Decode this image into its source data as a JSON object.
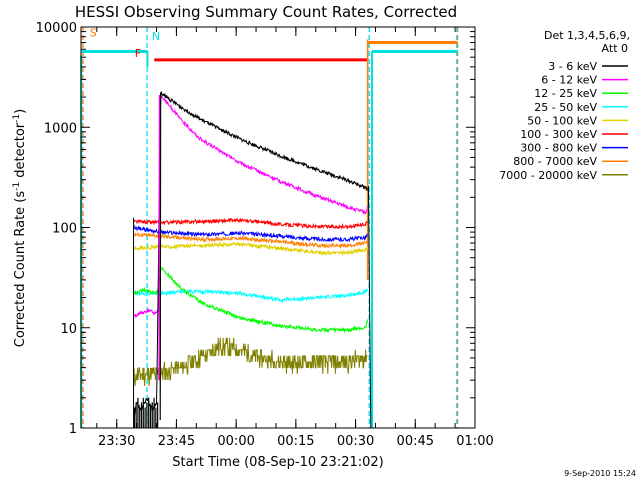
{
  "chart_data": {
    "type": "line",
    "title": "HESSI Observing Summary Count Rates, Corrected",
    "xlabel": "Start Time (08-Sep-10 23:21:02)",
    "ylabel": "Corrected Count Rate (s",
    "ylabel_sup": "-1",
    "ylabel_mid": " detector",
    "ylabel_end": ")",
    "y_scale": "log",
    "ylim": [
      1,
      10000
    ],
    "xlim": [
      "23:21:02",
      "01:00"
    ],
    "y_ticks": [
      {
        "value": 1,
        "label": "1"
      },
      {
        "value": 10,
        "label": "10"
      },
      {
        "value": 100,
        "label": "100"
      },
      {
        "value": 1000,
        "label": "1000"
      },
      {
        "value": 10000,
        "label": "10000"
      }
    ],
    "x_ticks": [
      "23:30",
      "23:45",
      "00:00",
      "00:15",
      "00:30",
      "00:45",
      "01:00"
    ],
    "x_tick_minutes": [
      8.97,
      23.97,
      38.97,
      53.97,
      68.97,
      83.97,
      98.97
    ],
    "xlim_minutes": [
      0,
      98.97
    ],
    "timestamp": "9-Sep-2010 15:24",
    "legend": {
      "header": "Det 1,3,4,5,6,9,",
      "sub": "Att 0",
      "placement": "top-right"
    },
    "flags": [
      {
        "label": "S",
        "color": "#ff8000"
      },
      {
        "label": "N",
        "color": "#00e0e0"
      },
      {
        "label": "F",
        "color": "#ff0000"
      }
    ],
    "series": [
      {
        "name": "3 - 6 keV",
        "color": "#000000",
        "x": [
          13.2,
          14.0,
          15.0,
          16.5,
          18.0,
          19.0,
          20.0,
          25,
          30,
          40,
          50,
          60,
          67,
          71.5,
          72.0
        ],
        "y": [
          1.2,
          1.8,
          1.5,
          2,
          1.5,
          1.8,
          2200,
          1600,
          1200,
          760,
          520,
          370,
          295,
          250,
          240
        ]
      },
      {
        "name": "6 - 12 keV",
        "color": "#ff00ff",
        "x": [
          13.2,
          15.0,
          17.0,
          18.5,
          19.5,
          20.0,
          25,
          30,
          40,
          50,
          60,
          67,
          71.5,
          72.0
        ],
        "y": [
          13,
          14,
          15,
          14,
          15,
          2100,
          1200,
          760,
          440,
          290,
          200,
          160,
          140,
          160
        ]
      },
      {
        "name": "12 - 25 keV",
        "color": "#00ff00",
        "x": [
          13.2,
          16.0,
          18.5,
          19.5,
          20.0,
          25,
          30,
          40,
          50,
          60,
          67,
          71.5,
          72.0
        ],
        "y": [
          22,
          24,
          22,
          24,
          40,
          25,
          18,
          12.5,
          10.5,
          9.5,
          9.5,
          10,
          12
        ]
      },
      {
        "name": "25 - 50 keV",
        "color": "#00ffff",
        "x": [
          13.2,
          20.0,
          25,
          30,
          40,
          50,
          60,
          67,
          71.5,
          72.0
        ],
        "y": [
          22,
          22,
          23,
          23,
          22,
          19,
          20,
          21,
          23,
          24
        ]
      },
      {
        "name": "50 - 100 keV",
        "color": "#e0d000",
        "x": [
          13.2,
          20,
          30,
          40,
          50,
          60,
          67,
          71.5,
          72.0
        ],
        "y": [
          62,
          64,
          66,
          68,
          62,
          56,
          56,
          60,
          62
        ]
      },
      {
        "name": "100 - 300 keV",
        "color": "#ff0000",
        "x": [
          13.2,
          20,
          30,
          40,
          50,
          60,
          67,
          71.5,
          72.0
        ],
        "y": [
          115,
          112,
          115,
          118,
          108,
          102,
          102,
          108,
          115
        ]
      },
      {
        "name": "300 - 800 keV",
        "color": "#0000ff",
        "x": [
          13.2,
          20,
          30,
          40,
          50,
          60,
          67,
          71.5,
          72.0
        ],
        "y": [
          100,
          90,
          85,
          88,
          82,
          76,
          76,
          80,
          85
        ]
      },
      {
        "name": "800 - 7000 keV",
        "color": "#ff8000",
        "x": [
          13.2,
          20,
          30,
          40,
          50,
          60,
          67,
          71.5,
          72.0
        ],
        "y": [
          85,
          82,
          76,
          78,
          72,
          66,
          66,
          70,
          72
        ]
      },
      {
        "name": "7000 - 20000 keV",
        "color": "#808000",
        "x": [
          13.2,
          20,
          25,
          30,
          35,
          40,
          45,
          50,
          55,
          60,
          67,
          71.5,
          72.0
        ],
        "y": [
          3.3,
          3.5,
          4,
          5,
          6.5,
          6,
          5,
          4.5,
          4.5,
          4.5,
          4.5,
          5,
          5.5
        ]
      }
    ],
    "grid": false
  }
}
